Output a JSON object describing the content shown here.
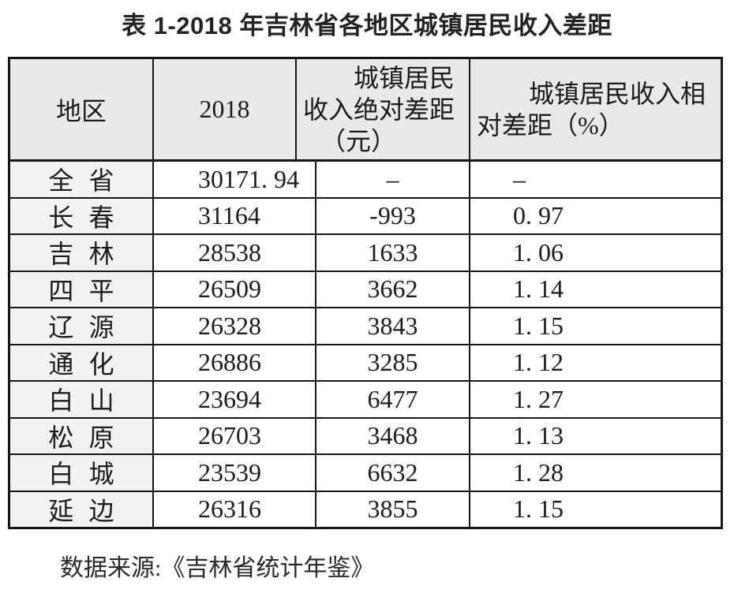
{
  "title": "表 1-2018 年吉林省各地区城镇居民收入差距",
  "table": {
    "header": {
      "col1": "地区",
      "col2": "2018",
      "col3": {
        "label": "城镇居民收入绝对差距（元）",
        "lines": [
          "城镇居民",
          "收入绝对差距",
          "（元）"
        ]
      },
      "col4": {
        "label": "城镇居民收入相对差距（%）",
        "lines": [
          "城镇居民收入相",
          "对差距（%）"
        ]
      }
    },
    "rows": [
      {
        "region": "全省",
        "cells": [
          "30171. 94",
          "–",
          "–"
        ]
      },
      {
        "region": "长春",
        "cells": [
          "31164",
          "-993",
          "0. 97"
        ]
      },
      {
        "region": "吉林",
        "cells": [
          "28538",
          "1633",
          "1. 06"
        ]
      },
      {
        "region": "四平",
        "cells": [
          "26509",
          "3662",
          "1. 14"
        ]
      },
      {
        "region": "辽源",
        "cells": [
          "26328",
          "3843",
          "1. 15"
        ]
      },
      {
        "region": "通化",
        "cells": [
          "26886",
          "3285",
          "1. 12"
        ]
      },
      {
        "region": "白山",
        "cells": [
          "23694",
          "6477",
          "1. 27"
        ]
      },
      {
        "region": "松原",
        "cells": [
          "26703",
          "3468",
          "1. 13"
        ]
      },
      {
        "region": "白城",
        "cells": [
          "23539",
          "6632",
          "1. 28"
        ]
      },
      {
        "region": "延边",
        "cells": [
          "26316",
          "3855",
          "1. 15"
        ]
      }
    ]
  },
  "footer": "数据来源:《吉林省统计年鉴》",
  "colors": {
    "header_bg": "#e9e9e9",
    "region_col_bg": "#f2f2f0",
    "border": "#161616",
    "text": "#1c1c1c",
    "page_bg": "#ffffff"
  },
  "chart_data": {
    "type": "table",
    "title": "表 1-2018 年吉林省各地区城镇居民收入差距",
    "columns": [
      "地区",
      "2018",
      "城镇居民收入绝对差距（元）",
      "城镇居民收入相对差距（%）"
    ],
    "rows": [
      [
        "全省",
        30171.94,
        null,
        null
      ],
      [
        "长春",
        31164,
        -993,
        0.97
      ],
      [
        "吉林",
        28538,
        1633,
        1.06
      ],
      [
        "四平",
        26509,
        3662,
        1.14
      ],
      [
        "辽源",
        26328,
        3843,
        1.15
      ],
      [
        "通化",
        26886,
        3285,
        1.12
      ],
      [
        "白山",
        23694,
        6477,
        1.27
      ],
      [
        "松原",
        26703,
        3468,
        1.13
      ],
      [
        "白城",
        23539,
        6632,
        1.28
      ],
      [
        "延边",
        26316,
        3855,
        1.15
      ]
    ],
    "source": "数据来源:《吉林省统计年鉴》",
    "layout_hints": {
      "header_background": "#e9e9e9",
      "region_column_background": "#f2f2f0",
      "missing_value_symbol": "–",
      "grid": true
    }
  }
}
